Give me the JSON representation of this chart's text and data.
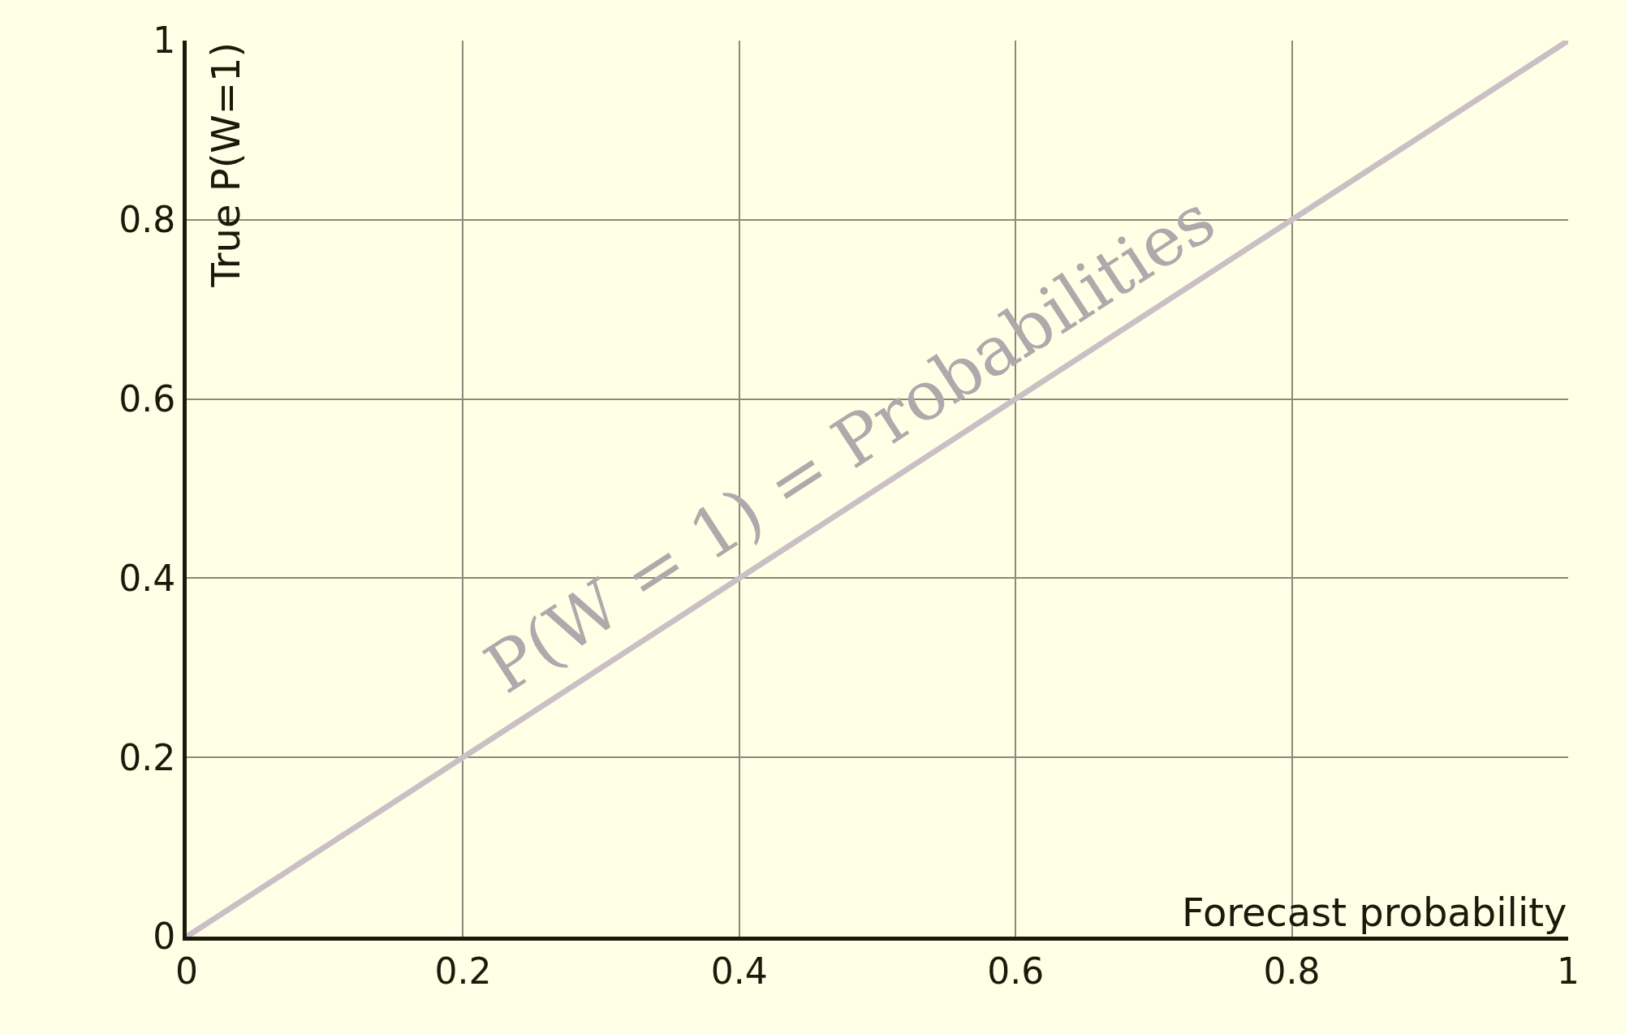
{
  "chart_data": {
    "type": "line",
    "xlabel": "Forecast probability",
    "ylabel": "True P(W=1)",
    "x": [
      0,
      1
    ],
    "series": [
      {
        "color": "#cbbfc6",
        "values": [
          0,
          1
        ]
      }
    ],
    "annotations": [
      "P(W = 1) = Probabilities"
    ],
    "xlim": [
      0,
      1
    ],
    "ylim": [
      0,
      1
    ],
    "xticks": [
      0,
      0.2,
      0.4,
      0.6,
      0.8,
      1
    ],
    "yticks": [
      0,
      0.2,
      0.4,
      0.6,
      0.8,
      1
    ],
    "grid": true,
    "line_style": "solid"
  }
}
